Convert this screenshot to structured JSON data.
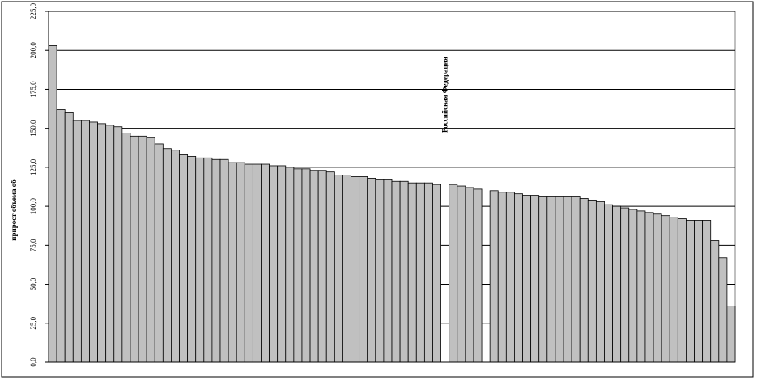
{
  "chart_data": {
    "type": "bar",
    "y_label": "прирост объема об",
    "categories": [
      null,
      null,
      null,
      null,
      null,
      null,
      null,
      null,
      null,
      null,
      null,
      null,
      null,
      null,
      null,
      null,
      null,
      null,
      null,
      null,
      null,
      null,
      null,
      null,
      null,
      null,
      null,
      null,
      null,
      null,
      null,
      null,
      null,
      null,
      null,
      null,
      null,
      null,
      null,
      null,
      null,
      null,
      null,
      null,
      null,
      null,
      null,
      null,
      "Российская Федерация",
      null,
      null,
      null,
      null,
      null,
      null,
      null,
      null,
      null,
      null,
      null,
      null,
      null,
      null,
      null,
      null,
      null,
      null,
      null,
      null,
      null,
      null,
      null,
      null,
      null,
      null,
      null,
      null,
      null,
      null,
      null,
      null,
      null,
      null,
      null
    ],
    "values": [
      203,
      162,
      160,
      155,
      155,
      154,
      153,
      152,
      151,
      147,
      145,
      145,
      144,
      140,
      137,
      136,
      133,
      132,
      131,
      131,
      130,
      130,
      128,
      128,
      127,
      127,
      127,
      126,
      126,
      125,
      124,
      124,
      123,
      123,
      122,
      120,
      120,
      119,
      119,
      118,
      117,
      117,
      116,
      116,
      115,
      115,
      115,
      114,
      null,
      114,
      113,
      112,
      111,
      null,
      110,
      109,
      109,
      108,
      107,
      107,
      106,
      106,
      106,
      106,
      106,
      105,
      104,
      103,
      101,
      100,
      99,
      98,
      97,
      96,
      95,
      94,
      93,
      92,
      91,
      91,
      91,
      78,
      67,
      36
    ],
    "color": "#c0c0c0",
    "ylim": [
      0,
      225
    ],
    "yticks": [
      {
        "value": 0,
        "label": "0,0"
      },
      {
        "value": 25,
        "label": "25,0"
      },
      {
        "value": 50,
        "label": "50,0"
      },
      {
        "value": 75,
        "label": "75,0"
      },
      {
        "value": 100,
        "label": "100,0"
      },
      {
        "value": 125,
        "label": "125,0"
      },
      {
        "value": 150,
        "label": "150,0"
      },
      {
        "value": 175,
        "label": "175,0"
      },
      {
        "value": 200,
        "label": "200,0"
      },
      {
        "value": 225,
        "label": "225,0"
      }
    ],
    "grid": true
  }
}
